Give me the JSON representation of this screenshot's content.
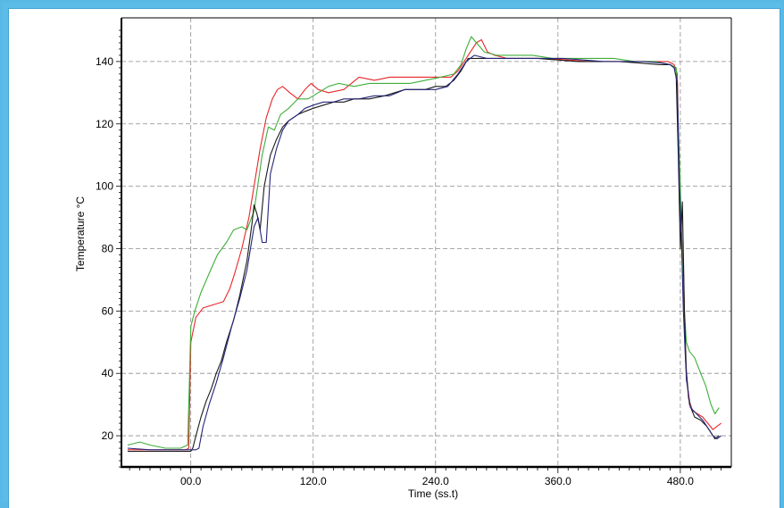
{
  "chart_data": {
    "type": "line",
    "title": "",
    "xlabel": "Time (ss.t)",
    "ylabel": "Temperature °C",
    "xlim": [
      -68,
      530
    ],
    "ylim": [
      10,
      154
    ],
    "x_ticks": [
      0,
      120,
      240,
      360,
      480
    ],
    "x_tick_labels": [
      "00.0",
      "120.0",
      "240.0",
      "360.0",
      "480.0"
    ],
    "y_ticks": [
      20,
      40,
      60,
      80,
      100,
      120,
      140
    ],
    "y_tick_labels": [
      "20",
      "40",
      "60",
      "80",
      "100",
      "120",
      "140"
    ],
    "grid": true,
    "legend": "none",
    "series": [
      {
        "color": "#e8262a",
        "points": [
          [
            -62,
            15.5
          ],
          [
            -40,
            15.5
          ],
          [
            -20,
            15.5
          ],
          [
            -5,
            15.5
          ],
          [
            -2,
            16
          ],
          [
            0,
            50
          ],
          [
            5,
            58
          ],
          [
            12,
            61
          ],
          [
            22,
            62
          ],
          [
            32,
            63
          ],
          [
            38,
            67
          ],
          [
            43,
            72
          ],
          [
            50,
            80
          ],
          [
            57,
            90
          ],
          [
            62,
            100
          ],
          [
            68,
            112
          ],
          [
            74,
            122
          ],
          [
            80,
            128
          ],
          [
            85,
            131
          ],
          [
            90,
            132
          ],
          [
            97,
            130
          ],
          [
            105,
            128
          ],
          [
            112,
            131
          ],
          [
            118,
            133
          ],
          [
            125,
            131
          ],
          [
            135,
            130
          ],
          [
            150,
            131
          ],
          [
            165,
            135
          ],
          [
            180,
            134
          ],
          [
            195,
            135
          ],
          [
            210,
            135
          ],
          [
            225,
            135
          ],
          [
            240,
            135
          ],
          [
            255,
            135
          ],
          [
            262,
            137
          ],
          [
            268,
            140
          ],
          [
            274,
            143
          ],
          [
            280,
            146
          ],
          [
            285,
            147
          ],
          [
            291,
            143
          ],
          [
            298,
            142
          ],
          [
            310,
            141
          ],
          [
            330,
            141
          ],
          [
            350,
            141
          ],
          [
            370,
            140.5
          ],
          [
            390,
            140
          ],
          [
            410,
            140
          ],
          [
            430,
            140
          ],
          [
            450,
            140
          ],
          [
            468,
            140
          ],
          [
            474,
            139
          ],
          [
            477,
            136
          ],
          [
            479,
            100
          ],
          [
            481,
            85
          ],
          [
            483,
            75
          ],
          [
            485,
            45
          ],
          [
            488,
            32
          ],
          [
            492,
            28
          ],
          [
            497,
            27
          ],
          [
            502,
            26
          ],
          [
            507,
            24
          ],
          [
            512,
            22
          ],
          [
            516,
            23
          ],
          [
            520,
            24
          ]
        ]
      },
      {
        "color": "#3fae3a",
        "points": [
          [
            -62,
            17
          ],
          [
            -50,
            18
          ],
          [
            -40,
            17
          ],
          [
            -25,
            16
          ],
          [
            -10,
            16
          ],
          [
            -3,
            17
          ],
          [
            0,
            55
          ],
          [
            4,
            60
          ],
          [
            10,
            66
          ],
          [
            18,
            72
          ],
          [
            26,
            78
          ],
          [
            35,
            82
          ],
          [
            42,
            86
          ],
          [
            50,
            87
          ],
          [
            55,
            86
          ],
          [
            62,
            92
          ],
          [
            70,
            110
          ],
          [
            76,
            119
          ],
          [
            82,
            118
          ],
          [
            88,
            123
          ],
          [
            96,
            125
          ],
          [
            105,
            128
          ],
          [
            115,
            128
          ],
          [
            125,
            130
          ],
          [
            135,
            132
          ],
          [
            145,
            133
          ],
          [
            160,
            132
          ],
          [
            175,
            133
          ],
          [
            190,
            133
          ],
          [
            200,
            133
          ],
          [
            215,
            133
          ],
          [
            230,
            134
          ],
          [
            245,
            135
          ],
          [
            258,
            136
          ],
          [
            265,
            139
          ],
          [
            270,
            144
          ],
          [
            275,
            148
          ],
          [
            280,
            146
          ],
          [
            288,
            143
          ],
          [
            300,
            142
          ],
          [
            315,
            142
          ],
          [
            335,
            142
          ],
          [
            355,
            141
          ],
          [
            375,
            141
          ],
          [
            395,
            141
          ],
          [
            415,
            141
          ],
          [
            435,
            140
          ],
          [
            455,
            140
          ],
          [
            470,
            139
          ],
          [
            476,
            138
          ],
          [
            478,
            120
          ],
          [
            480,
            100
          ],
          [
            483,
            65
          ],
          [
            486,
            50
          ],
          [
            489,
            47
          ],
          [
            494,
            45
          ],
          [
            500,
            40
          ],
          [
            505,
            36
          ],
          [
            510,
            30
          ],
          [
            514,
            27
          ],
          [
            518,
            29
          ]
        ]
      },
      {
        "color": "#1a1a1a",
        "points": [
          [
            -62,
            15
          ],
          [
            -40,
            15
          ],
          [
            -20,
            15
          ],
          [
            -5,
            15
          ],
          [
            0,
            15
          ],
          [
            2,
            16
          ],
          [
            5,
            20
          ],
          [
            10,
            26
          ],
          [
            15,
            31
          ],
          [
            20,
            35
          ],
          [
            25,
            40
          ],
          [
            30,
            44
          ],
          [
            35,
            50
          ],
          [
            42,
            57
          ],
          [
            48,
            65
          ],
          [
            55,
            76
          ],
          [
            60,
            88
          ],
          [
            62,
            94
          ],
          [
            65,
            91
          ],
          [
            68,
            86
          ],
          [
            72,
            100
          ],
          [
            78,
            110
          ],
          [
            84,
            115
          ],
          [
            90,
            119
          ],
          [
            96,
            121
          ],
          [
            105,
            123
          ],
          [
            112,
            124
          ],
          [
            120,
            125
          ],
          [
            130,
            126
          ],
          [
            140,
            127
          ],
          [
            150,
            127
          ],
          [
            160,
            128
          ],
          [
            175,
            128
          ],
          [
            190,
            129
          ],
          [
            200,
            130
          ],
          [
            210,
            131
          ],
          [
            220,
            131
          ],
          [
            230,
            131
          ],
          [
            240,
            132
          ],
          [
            250,
            132
          ],
          [
            258,
            134
          ],
          [
            265,
            137
          ],
          [
            272,
            141
          ],
          [
            280,
            141
          ],
          [
            290,
            141
          ],
          [
            305,
            141
          ],
          [
            320,
            141
          ],
          [
            340,
            141
          ],
          [
            360,
            140.5
          ],
          [
            380,
            140
          ],
          [
            400,
            140
          ],
          [
            420,
            140
          ],
          [
            440,
            139.5
          ],
          [
            460,
            139
          ],
          [
            470,
            139
          ],
          [
            474,
            138
          ],
          [
            476,
            135
          ],
          [
            478,
            110
          ],
          [
            480,
            80
          ],
          [
            482,
            95
          ],
          [
            484,
            60
          ],
          [
            486,
            40
          ],
          [
            489,
            30
          ],
          [
            494,
            26
          ],
          [
            500,
            25
          ],
          [
            506,
            23
          ],
          [
            510,
            21
          ],
          [
            514,
            19
          ],
          [
            518,
            20
          ]
        ]
      },
      {
        "color": "#25257a",
        "points": [
          [
            -62,
            16
          ],
          [
            -40,
            15.5
          ],
          [
            -20,
            15.5
          ],
          [
            -5,
            15.5
          ],
          [
            5,
            15.5
          ],
          [
            8,
            16
          ],
          [
            12,
            23
          ],
          [
            18,
            30
          ],
          [
            25,
            37
          ],
          [
            32,
            45
          ],
          [
            40,
            55
          ],
          [
            48,
            64
          ],
          [
            55,
            73
          ],
          [
            62,
            87
          ],
          [
            66,
            90
          ],
          [
            70,
            82
          ],
          [
            74,
            82
          ],
          [
            78,
            104
          ],
          [
            84,
            112
          ],
          [
            90,
            118
          ],
          [
            96,
            121
          ],
          [
            105,
            123
          ],
          [
            112,
            125
          ],
          [
            120,
            126
          ],
          [
            130,
            127
          ],
          [
            140,
            127
          ],
          [
            150,
            128
          ],
          [
            165,
            128
          ],
          [
            180,
            129
          ],
          [
            195,
            129
          ],
          [
            210,
            131
          ],
          [
            225,
            131
          ],
          [
            240,
            131
          ],
          [
            252,
            132
          ],
          [
            262,
            136
          ],
          [
            270,
            140
          ],
          [
            278,
            142
          ],
          [
            290,
            141
          ],
          [
            305,
            141
          ],
          [
            325,
            141
          ],
          [
            345,
            141
          ],
          [
            365,
            141
          ],
          [
            385,
            140.5
          ],
          [
            405,
            140
          ],
          [
            425,
            140
          ],
          [
            445,
            140
          ],
          [
            462,
            139.5
          ],
          [
            470,
            139
          ],
          [
            474,
            138
          ],
          [
            477,
            133
          ],
          [
            479,
            100
          ],
          [
            481,
            85
          ],
          [
            483,
            60
          ],
          [
            486,
            38
          ],
          [
            490,
            29
          ],
          [
            496,
            27
          ],
          [
            502,
            25
          ],
          [
            508,
            22
          ],
          [
            512,
            20
          ],
          [
            516,
            19
          ],
          [
            520,
            20
          ]
        ]
      }
    ]
  }
}
